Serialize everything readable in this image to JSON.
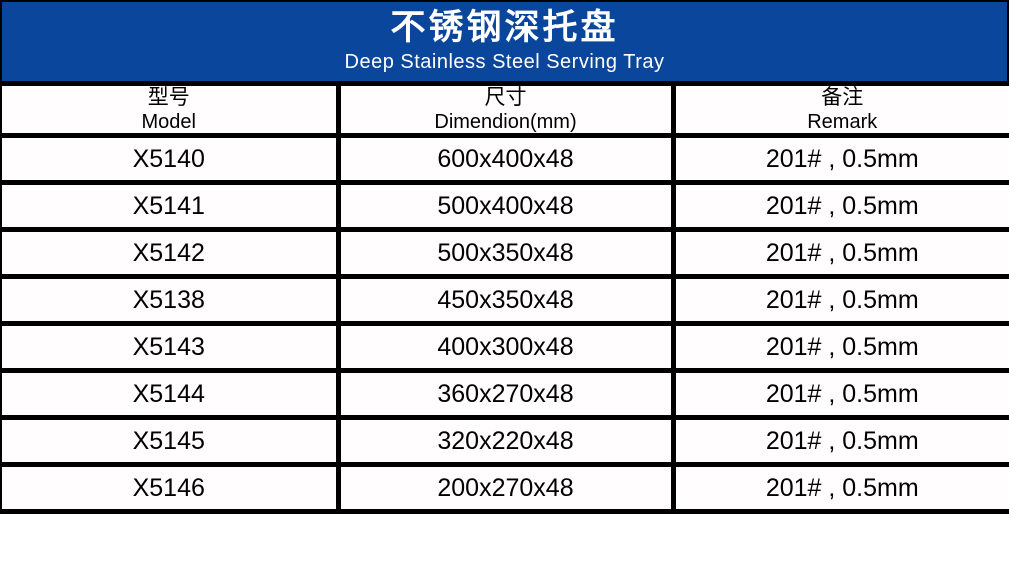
{
  "title": {
    "zh": "不锈钢深托盘",
    "en": "Deep Stainless Steel Serving Tray"
  },
  "colors": {
    "banner_blue": "#0a469b",
    "border_black": "#000000",
    "cell_background": "#fffdfd",
    "banner_text": "#ffffff"
  },
  "table": {
    "columns": [
      {
        "zh": "型号",
        "en": "Model"
      },
      {
        "zh": "尺寸",
        "en": "Dimendion(mm)"
      },
      {
        "zh": "备注",
        "en": "Remark"
      }
    ],
    "rows": [
      {
        "model": "X5140",
        "dimension": "600x400x48",
        "remark": "201# , 0.5mm"
      },
      {
        "model": "X5141",
        "dimension": "500x400x48",
        "remark": "201# , 0.5mm"
      },
      {
        "model": "X5142",
        "dimension": "500x350x48",
        "remark": "201# , 0.5mm"
      },
      {
        "model": "X5138",
        "dimension": "450x350x48",
        "remark": "201# , 0.5mm"
      },
      {
        "model": "X5143",
        "dimension": "400x300x48",
        "remark": "201# , 0.5mm"
      },
      {
        "model": "X5144",
        "dimension": "360x270x48",
        "remark": "201# , 0.5mm"
      },
      {
        "model": "X5145",
        "dimension": "320x220x48",
        "remark": "201# , 0.5mm"
      },
      {
        "model": "X5146",
        "dimension": "200x270x48",
        "remark": "201# , 0.5mm"
      }
    ]
  }
}
